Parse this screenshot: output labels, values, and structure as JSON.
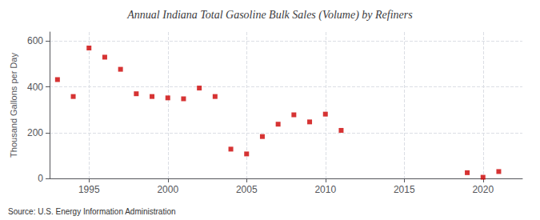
{
  "chart_data": {
    "type": "scatter",
    "title": "Annual Indiana Total Gasoline Bulk Sales (Volume) by Refiners",
    "ylabel": "Thousand Gallons per Day",
    "source": "Source: U.S. Energy Information Administration",
    "x": [
      1993,
      1994,
      1995,
      1996,
      1997,
      1998,
      1999,
      2000,
      2001,
      2002,
      2003,
      2004,
      2005,
      2006,
      2007,
      2008,
      2009,
      2010,
      2011,
      2019,
      2020,
      2021
    ],
    "values": [
      432,
      358,
      570,
      530,
      477,
      370,
      358,
      352,
      348,
      395,
      358,
      128,
      107,
      183,
      237,
      278,
      247,
      281,
      210,
      25,
      5,
      30
    ],
    "color": "#cc0000",
    "marker": "square",
    "xlim": [
      1992.5,
      2022.5
    ],
    "xticks": [
      1995,
      2000,
      2005,
      2010,
      2015,
      2020
    ],
    "ylim": [
      0,
      640
    ],
    "yticks": [
      0,
      200,
      400,
      600
    ],
    "grid": true
  }
}
